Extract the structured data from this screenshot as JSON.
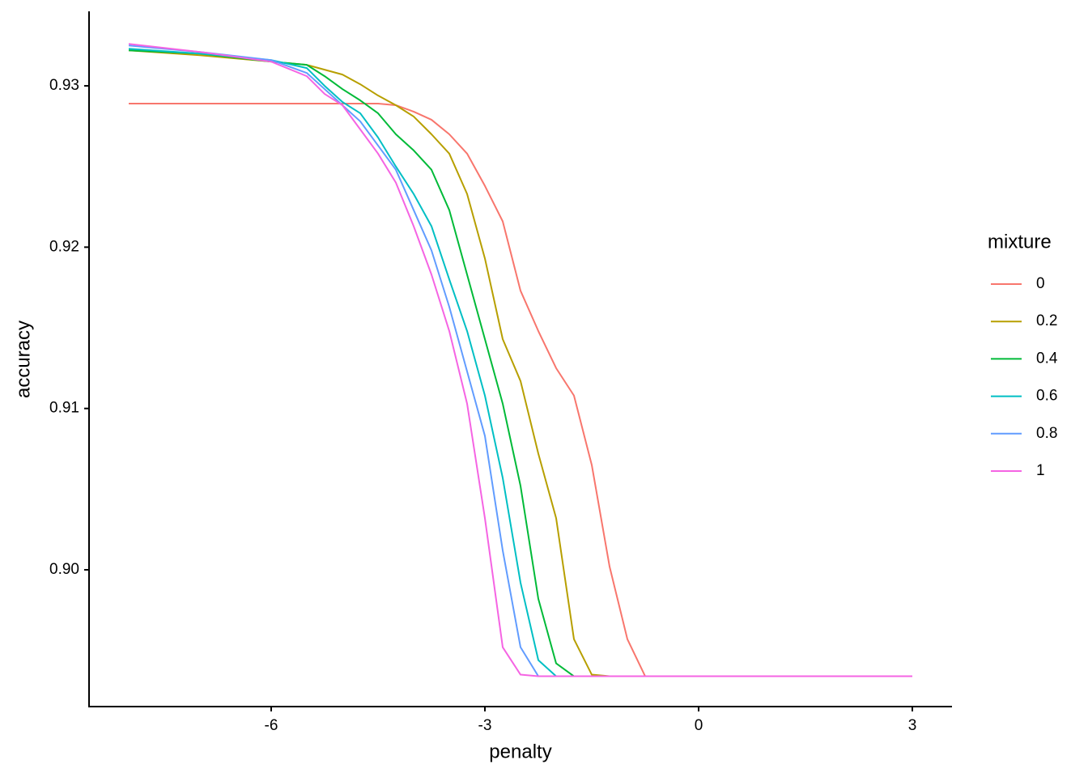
{
  "chart_data": {
    "type": "line",
    "x_label": "penalty",
    "y_label": "accuracy",
    "legend_title": "mixture",
    "x": [
      -8,
      -7,
      -6,
      -5.5,
      -5.25,
      -5,
      -4.75,
      -4.5,
      -4.25,
      -4,
      -3.75,
      -3.5,
      -3.25,
      -3,
      -2.75,
      -2.5,
      -2.25,
      -2,
      -1.75,
      -1.5,
      -1.25,
      -1,
      -0.75,
      0,
      3
    ],
    "series": [
      {
        "name": "0",
        "color": "#F8766D",
        "values": [
          0.9289,
          0.9289,
          0.9289,
          0.9289,
          0.9289,
          0.9289,
          0.9289,
          0.9289,
          0.9288,
          0.9284,
          0.9279,
          0.927,
          0.9258,
          0.9238,
          0.9216,
          0.9173,
          0.9148,
          0.9125,
          0.9108,
          0.9065,
          0.9002,
          0.8957,
          0.8934,
          0.8934,
          0.8934
        ]
      },
      {
        "name": "0.2",
        "color": "#B79F00",
        "values": [
          0.9322,
          0.9319,
          0.9315,
          0.9313,
          0.931,
          0.9307,
          0.9301,
          0.9294,
          0.9288,
          0.9281,
          0.927,
          0.9258,
          0.9233,
          0.9193,
          0.9143,
          0.9117,
          0.9072,
          0.9032,
          0.8957,
          0.8935,
          0.8934,
          0.8934,
          0.8934,
          0.8934,
          0.8934
        ]
      },
      {
        "name": "0.4",
        "color": "#00BA38",
        "values": [
          0.9322,
          0.932,
          0.9315,
          0.9313,
          0.9306,
          0.9298,
          0.9291,
          0.9283,
          0.927,
          0.926,
          0.9248,
          0.9223,
          0.9183,
          0.9143,
          0.9103,
          0.9052,
          0.8982,
          0.8942,
          0.8934,
          0.8934,
          0.8934,
          0.8934,
          0.8934,
          0.8934,
          0.8934
        ]
      },
      {
        "name": "0.6",
        "color": "#00BFC4",
        "values": [
          0.9323,
          0.932,
          0.9316,
          0.9311,
          0.93,
          0.929,
          0.9283,
          0.9268,
          0.925,
          0.9233,
          0.9213,
          0.918,
          0.9148,
          0.9108,
          0.9057,
          0.8992,
          0.8944,
          0.8934,
          0.8934,
          0.8934,
          0.8934,
          0.8934,
          0.8934,
          0.8934,
          0.8934
        ]
      },
      {
        "name": "0.8",
        "color": "#619CFF",
        "values": [
          0.9325,
          0.9321,
          0.9316,
          0.9308,
          0.9298,
          0.9288,
          0.9278,
          0.9263,
          0.9248,
          0.9223,
          0.9198,
          0.9163,
          0.9123,
          0.9083,
          0.9012,
          0.8952,
          0.8934,
          0.8934,
          0.8934,
          0.8934,
          0.8934,
          0.8934,
          0.8934,
          0.8934,
          0.8934
        ]
      },
      {
        "name": "1",
        "color": "#F564E3",
        "values": [
          0.9326,
          0.9321,
          0.9315,
          0.9306,
          0.9295,
          0.9288,
          0.9273,
          0.9258,
          0.924,
          0.9213,
          0.9183,
          0.9148,
          0.9103,
          0.9032,
          0.8952,
          0.8935,
          0.8934,
          0.8934,
          0.8934,
          0.8934,
          0.8934,
          0.8934,
          0.8934,
          0.8934,
          0.8934
        ]
      }
    ],
    "xlim": [
      -8.557,
      3.557
    ],
    "xticks": [
      -6,
      -3,
      0,
      3
    ],
    "ylim": [
      0.89152,
      0.93462
    ],
    "yticks": [
      {
        "value": 0.9,
        "label": "0.90"
      },
      0.91,
      0.92,
      0.93
    ],
    "grid": false,
    "legend_position": "right"
  }
}
